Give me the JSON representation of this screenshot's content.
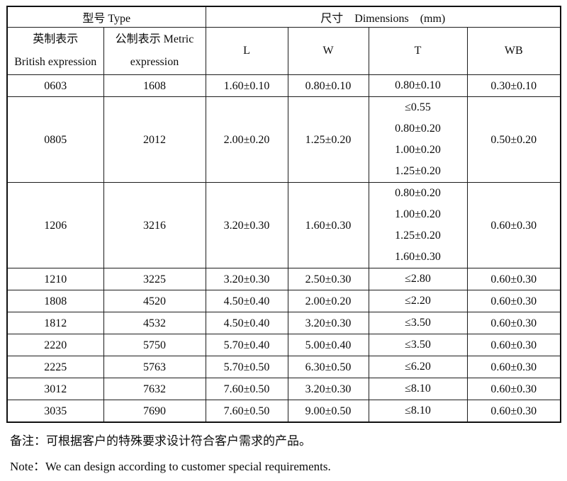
{
  "table": {
    "header": {
      "type_group": "型号 Type",
      "dims_group": "尺寸    Dimensions    (mm)",
      "col_british_zh": "英制表示",
      "col_british_en": "British expression",
      "col_metric_zh": "公制表示 Metric",
      "col_metric_en": "expression",
      "col_l": "L",
      "col_w": "W",
      "col_t": "T",
      "col_wb": "WB"
    },
    "rows": [
      {
        "british": "0603",
        "metric": "1608",
        "l": "1.60±0.10",
        "w": "0.80±0.10",
        "t": [
          "0.80±0.10"
        ],
        "wb": "0.30±0.10"
      },
      {
        "british": "0805",
        "metric": "2012",
        "l": "2.00±0.20",
        "w": "1.25±0.20",
        "t": [
          "≤0.55",
          "0.80±0.20",
          "1.00±0.20",
          "1.25±0.20"
        ],
        "wb": "0.50±0.20"
      },
      {
        "british": "1206",
        "metric": "3216",
        "l": "3.20±0.30",
        "w": "1.60±0.30",
        "t": [
          "0.80±0.20",
          "1.00±0.20",
          "1.25±0.20",
          "1.60±0.30"
        ],
        "wb": "0.60±0.30"
      },
      {
        "british": "1210",
        "metric": "3225",
        "l": "3.20±0.30",
        "w": "2.50±0.30",
        "t": [
          "≤2.80"
        ],
        "wb": "0.60±0.30"
      },
      {
        "british": "1808",
        "metric": "4520",
        "l": "4.50±0.40",
        "w": "2.00±0.20",
        "t": [
          "≤2.20"
        ],
        "wb": "0.60±0.30"
      },
      {
        "british": "1812",
        "metric": "4532",
        "l": "4.50±0.40",
        "w": "3.20±0.30",
        "t": [
          "≤3.50"
        ],
        "wb": "0.60±0.30"
      },
      {
        "british": "2220",
        "metric": "5750",
        "l": "5.70±0.40",
        "w": "5.00±0.40",
        "t": [
          "≤3.50"
        ],
        "wb": "0.60±0.30"
      },
      {
        "british": "2225",
        "metric": "5763",
        "l": "5.70±0.50",
        "w": "6.30±0.50",
        "t": [
          "≤6.20"
        ],
        "wb": "0.60±0.30"
      },
      {
        "british": "3012",
        "metric": "7632",
        "l": "7.60±0.50",
        "w": "3.20±0.30",
        "t": [
          "≤8.10"
        ],
        "wb": "0.60±0.30"
      },
      {
        "british": "3035",
        "metric": "7690",
        "l": "7.60±0.50",
        "w": "9.00±0.50",
        "t": [
          "≤8.10"
        ],
        "wb": "0.60±0.30"
      }
    ]
  },
  "notes": {
    "chinese": "备注：可根据客户的特殊要求设计符合客户需求的产品。",
    "english": "Note：We can design according to customer special requirements."
  },
  "colors": {
    "background": "#ffffff",
    "text": "#0b0b0b",
    "border": "#1c1c1c"
  }
}
